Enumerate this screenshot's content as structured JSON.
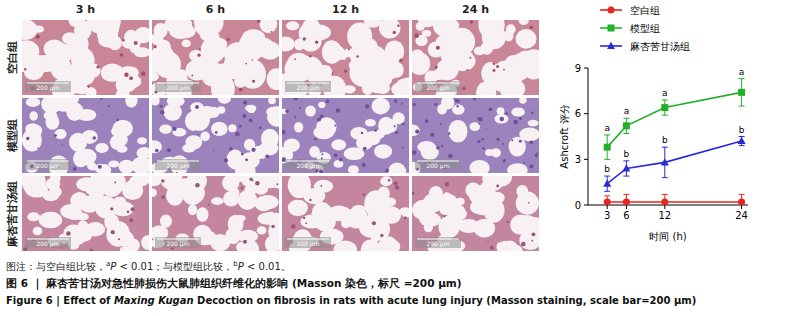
{
  "panels": {
    "columns": [
      "3 h",
      "6 h",
      "12 h",
      "24 h"
    ],
    "rows": [
      "空白组",
      "模型组",
      "麻杏苦甘汤组"
    ],
    "scale_label": "200 μm"
  },
  "chart_data": {
    "type": "line",
    "x": [
      3,
      6,
      12,
      24
    ],
    "xlabel": "时间 (h)",
    "ylabel": "Ashcroft 评分",
    "xlim": [
      0,
      25
    ],
    "xticks": [
      3,
      6,
      12,
      24
    ],
    "ylim": [
      0,
      9
    ],
    "yticks": [
      0,
      3,
      6,
      9
    ],
    "legend": "top-right",
    "series": [
      {
        "name": "空白组",
        "color": "#e8241f",
        "marker": "circle",
        "values": [
          0.2,
          0.2,
          0.2,
          0.2
        ],
        "errors": [
          0.4,
          0.5,
          0.5,
          0.5
        ]
      },
      {
        "name": "模型组",
        "color": "#22b02a",
        "marker": "square",
        "values": [
          3.8,
          5.2,
          6.4,
          7.4
        ],
        "errors": [
          0.8,
          0.5,
          0.5,
          0.9
        ],
        "significance_labels": [
          "a",
          "a",
          "a",
          "a"
        ]
      },
      {
        "name": "麻杏苦甘汤组",
        "color": "#2a2ad6",
        "marker": "triangle",
        "values": [
          1.4,
          2.4,
          2.8,
          4.2
        ],
        "errors": [
          0.5,
          0.5,
          1.0,
          0.3
        ],
        "significance_labels": [
          "b",
          "b",
          "b",
          "b"
        ]
      }
    ]
  },
  "caption": {
    "note": [
      "图注：与空白组比较，",
      "a",
      "P",
      " < 0.01；与模型组比较，",
      "b",
      "P",
      " < 0.01。"
    ],
    "title_zh": "图 6 ｜ 麻杏苦甘汤对急性肺损伤大鼠肺组织纤维化的影响 (Masson 染色，标尺 =200 μm)",
    "title_en": [
      "Figure 6 | Effect of ",
      "Maxing Kugan",
      " Decoction on fibrosis in rats with acute lung injury (Masson staining, scale bar=200 μm)"
    ]
  }
}
